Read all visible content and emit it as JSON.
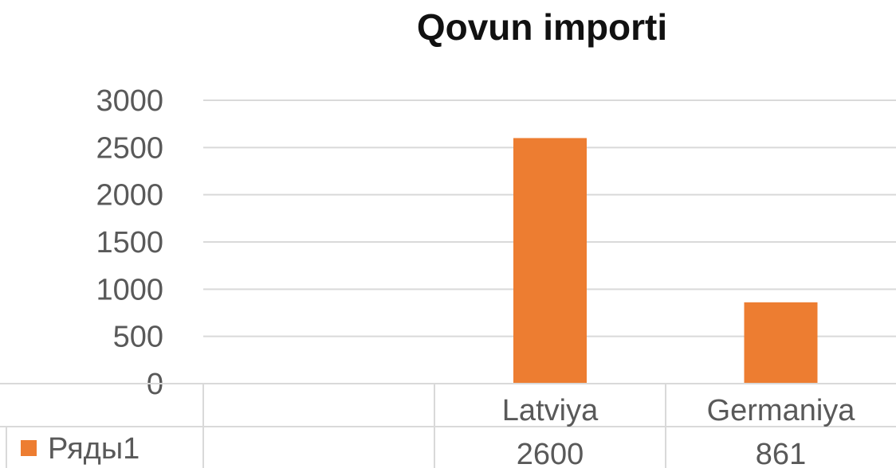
{
  "chart_data": {
    "type": "bar",
    "title": "Qovun importi",
    "categories": [
      "",
      "Latviya",
      "Germaniya"
    ],
    "series": [
      {
        "name": "Ряды1",
        "values": [
          null,
          2600,
          861
        ],
        "color": "#ED7D31"
      }
    ],
    "data_table": {
      "row_label": "Ряды1",
      "values": [
        "",
        "2600",
        "861"
      ]
    },
    "ylim": [
      0,
      3000
    ],
    "y_ticks": [
      "3000",
      "2500",
      "2000",
      "1500",
      "1000",
      "500",
      "0"
    ],
    "y_tick_values": [
      3000,
      2500,
      2000,
      1500,
      1000,
      500,
      0
    ],
    "grid": true,
    "legend_placement": "data-table-left",
    "xlabel": "",
    "ylabel": "",
    "colors": {
      "bar": "#ED7D31",
      "grid": "#D9D9D9",
      "text": "#595959",
      "title": "#111111"
    }
  }
}
